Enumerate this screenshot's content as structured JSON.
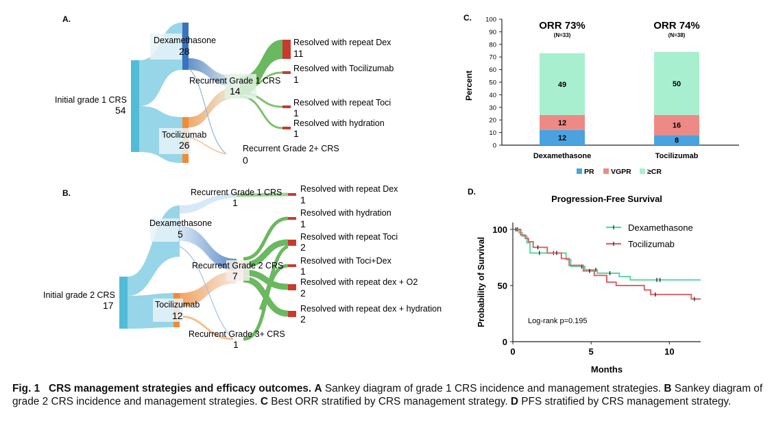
{
  "chart_data": [
    {
      "type": "sankey",
      "panel": "A.",
      "nodes": {
        "root": {
          "label": "Initial grade 1 CRS",
          "value": 54
        },
        "mid1": {
          "label": "Dexamethasone",
          "value": 28
        },
        "mid2": {
          "label": "Tocilizumab",
          "value": 26
        },
        "rec1": {
          "label": "Recurrent Grade 1 CRS",
          "value": 14
        },
        "rec2": {
          "label": "Recurrent Grade 2+ CRS",
          "value": 0
        },
        "out1": {
          "label": "Resolved with repeat Dex",
          "value": 11
        },
        "out2": {
          "label": "Resolved with Tocilizumab",
          "value": 1
        },
        "out3": {
          "label": "Resolved with repeat Toci",
          "value": 1
        },
        "out4": {
          "label": "Resolved with hydration",
          "value": 1
        }
      },
      "links": [
        {
          "from": "root",
          "to": "mid1",
          "value": 28
        },
        {
          "from": "root",
          "to": "mid2",
          "value": 26
        },
        {
          "from": "mid1",
          "to": "rec1",
          "value": 7
        },
        {
          "from": "mid2",
          "to": "rec1",
          "value": 7
        },
        {
          "from": "rec1",
          "to": "out1",
          "value": 11
        },
        {
          "from": "rec1",
          "to": "out2",
          "value": 1
        },
        {
          "from": "rec1",
          "to": "out3",
          "value": 1
        },
        {
          "from": "rec1",
          "to": "out4",
          "value": 1
        }
      ]
    },
    {
      "type": "sankey",
      "panel": "B.",
      "nodes": {
        "root": {
          "label": "Initial grade 2 CRS",
          "value": 17
        },
        "mid1": {
          "label": "Dexamethasone",
          "value": 5
        },
        "mid2": {
          "label": "Tocilizumab",
          "value": 12
        },
        "recA": {
          "label": "Recurrent Grade 1 CRS",
          "value": 1
        },
        "recB": {
          "label": "Recurrent Grade 2 CRS",
          "value": 7
        },
        "recC": {
          "label": "Recurrent Grade 3+ CRS",
          "value": 1
        },
        "o1": {
          "label": "Resolved with repeat Dex",
          "value": 1
        },
        "o2": {
          "label": "Resolved with hydration",
          "value": 1
        },
        "o3": {
          "label": "Resolved with repeat Toci",
          "value": 2
        },
        "o4": {
          "label": "Resolved with Toci+Dex",
          "value": 1
        },
        "o5": {
          "label": "Resolved with repeat dex + O2",
          "value": 2
        },
        "o6": {
          "label": "Resolved with repeat dex + hydration",
          "value": 2
        }
      },
      "links": [
        {
          "from": "root",
          "to": "mid1",
          "value": 5
        },
        {
          "from": "root",
          "to": "mid2",
          "value": 12
        },
        {
          "from": "mid1",
          "to": "recA",
          "value": 1
        },
        {
          "from": "mid1",
          "to": "recB",
          "value": 3
        },
        {
          "from": "mid2",
          "to": "recB",
          "value": 4
        },
        {
          "from": "mid2",
          "to": "recC",
          "value": 1
        },
        {
          "from": "recA",
          "to": "o1",
          "value": 1
        },
        {
          "from": "recB",
          "to": "o2",
          "value": 1
        },
        {
          "from": "recB",
          "to": "o3",
          "value": 2
        },
        {
          "from": "recB",
          "to": "o5",
          "value": 2
        },
        {
          "from": "recB",
          "to": "o6",
          "value": 2
        },
        {
          "from": "recC",
          "to": "o4",
          "value": 1
        }
      ]
    },
    {
      "type": "bar",
      "stacked": true,
      "panel": "C.",
      "categories": [
        "Dexamethasone",
        "Tocilizumab"
      ],
      "headers": [
        {
          "title": "ORR 73%",
          "sub": "(N=33)"
        },
        {
          "title": "ORR 74%",
          "sub": "(N=38)"
        }
      ],
      "series": [
        {
          "name": "PR",
          "values": [
            12,
            8
          ],
          "color": "#4aa3df"
        },
        {
          "name": "VGPR",
          "values": [
            12,
            16
          ],
          "color": "#ee8a86"
        },
        {
          "name": "≥CR",
          "values": [
            49,
            50
          ],
          "color": "#a8efcf"
        }
      ],
      "ylabel": "Percent",
      "ylim": [
        0,
        100
      ],
      "yticks": [
        0,
        10,
        20,
        30,
        40,
        50,
        60,
        70,
        80,
        90,
        100
      ],
      "legend": "bottom"
    },
    {
      "type": "line",
      "step": true,
      "panel": "D.",
      "title": "Progression-Free Survival",
      "xlabel": "Months",
      "ylabel": "Probability of Survival",
      "xlim": [
        0,
        12
      ],
      "ylim": [
        0,
        100
      ],
      "xticks": [
        0,
        5,
        10
      ],
      "yticks": [
        0,
        50,
        100
      ],
      "legend": "top-right",
      "annotation": "Log-rank p=0.195",
      "series": [
        {
          "name": "Dexamethasone",
          "color": "#5cd6a4",
          "x": [
            0,
            0.4,
            0.6,
            0.9,
            1.1,
            3.4,
            3.7,
            4.6,
            5.4,
            6.8,
            7.5,
            12
          ],
          "y": [
            100,
            97,
            94,
            88,
            79,
            73,
            67,
            64,
            61,
            58,
            55,
            55
          ],
          "censor_x": [
            0.3,
            1.7,
            2.6,
            4.4,
            5.3,
            6.2,
            9.2,
            9.4
          ]
        },
        {
          "name": "Tocilizumab",
          "color": "#d9656a",
          "x": [
            0,
            0.5,
            0.8,
            1.0,
            1.3,
            2.2,
            3.1,
            3.6,
            4.5,
            5.2,
            6.0,
            6.6,
            8.4,
            8.8,
            11.4,
            12
          ],
          "y": [
            100,
            95,
            92,
            89,
            84,
            79,
            74,
            68,
            63,
            59,
            53,
            50,
            46,
            42,
            38,
            38
          ],
          "censor_x": [
            0.2,
            1.6,
            2.8,
            4.9,
            9.1,
            11.6
          ]
        }
      ]
    }
  ],
  "caption": {
    "fig_label": "Fig. 1",
    "title": "CRS management strategies and efficacy outcomes.",
    "seg_a_letter": "A",
    "seg_a_text": " Sankey diagram of grade 1 CRS incidence and management strategies.",
    "seg_b_letter": "B",
    "seg_b_text": " Sankey diagram of grade 2 CRS incidence and management strategies.",
    "seg_c_letter": "C",
    "seg_c_text": " Best ORR stratified by CRS management strategy.",
    "seg_d_letter": "D",
    "seg_d_text": " PFS stratified by CRS management strategy."
  }
}
